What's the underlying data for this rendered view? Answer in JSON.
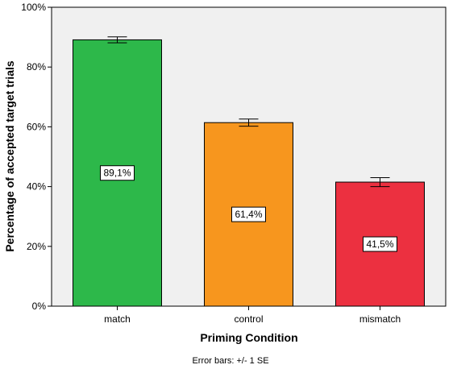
{
  "chart_data": {
    "type": "bar",
    "title": "",
    "xlabel": "Priming Condition",
    "ylabel": "Percentage of accepted target trials",
    "categories": [
      "match",
      "control",
      "mismatch"
    ],
    "values": [
      89.1,
      61.4,
      41.5
    ],
    "value_labels": [
      "89,1%",
      "61,4%",
      "41,5%"
    ],
    "error_se": [
      1.0,
      1.2,
      1.5
    ],
    "bar_colors": [
      "#2db84a",
      "#f7961e",
      "#ec3040"
    ],
    "ylim": [
      0,
      100
    ],
    "yticks": [
      0,
      20,
      40,
      60,
      80,
      100
    ],
    "ytick_labels": [
      "0%",
      "20%",
      "40%",
      "60%",
      "80%",
      "100%"
    ],
    "plot_background": "#f0f0f0",
    "grid": false,
    "legend": "none",
    "footnote": "Error bars: +/- 1 SE"
  }
}
